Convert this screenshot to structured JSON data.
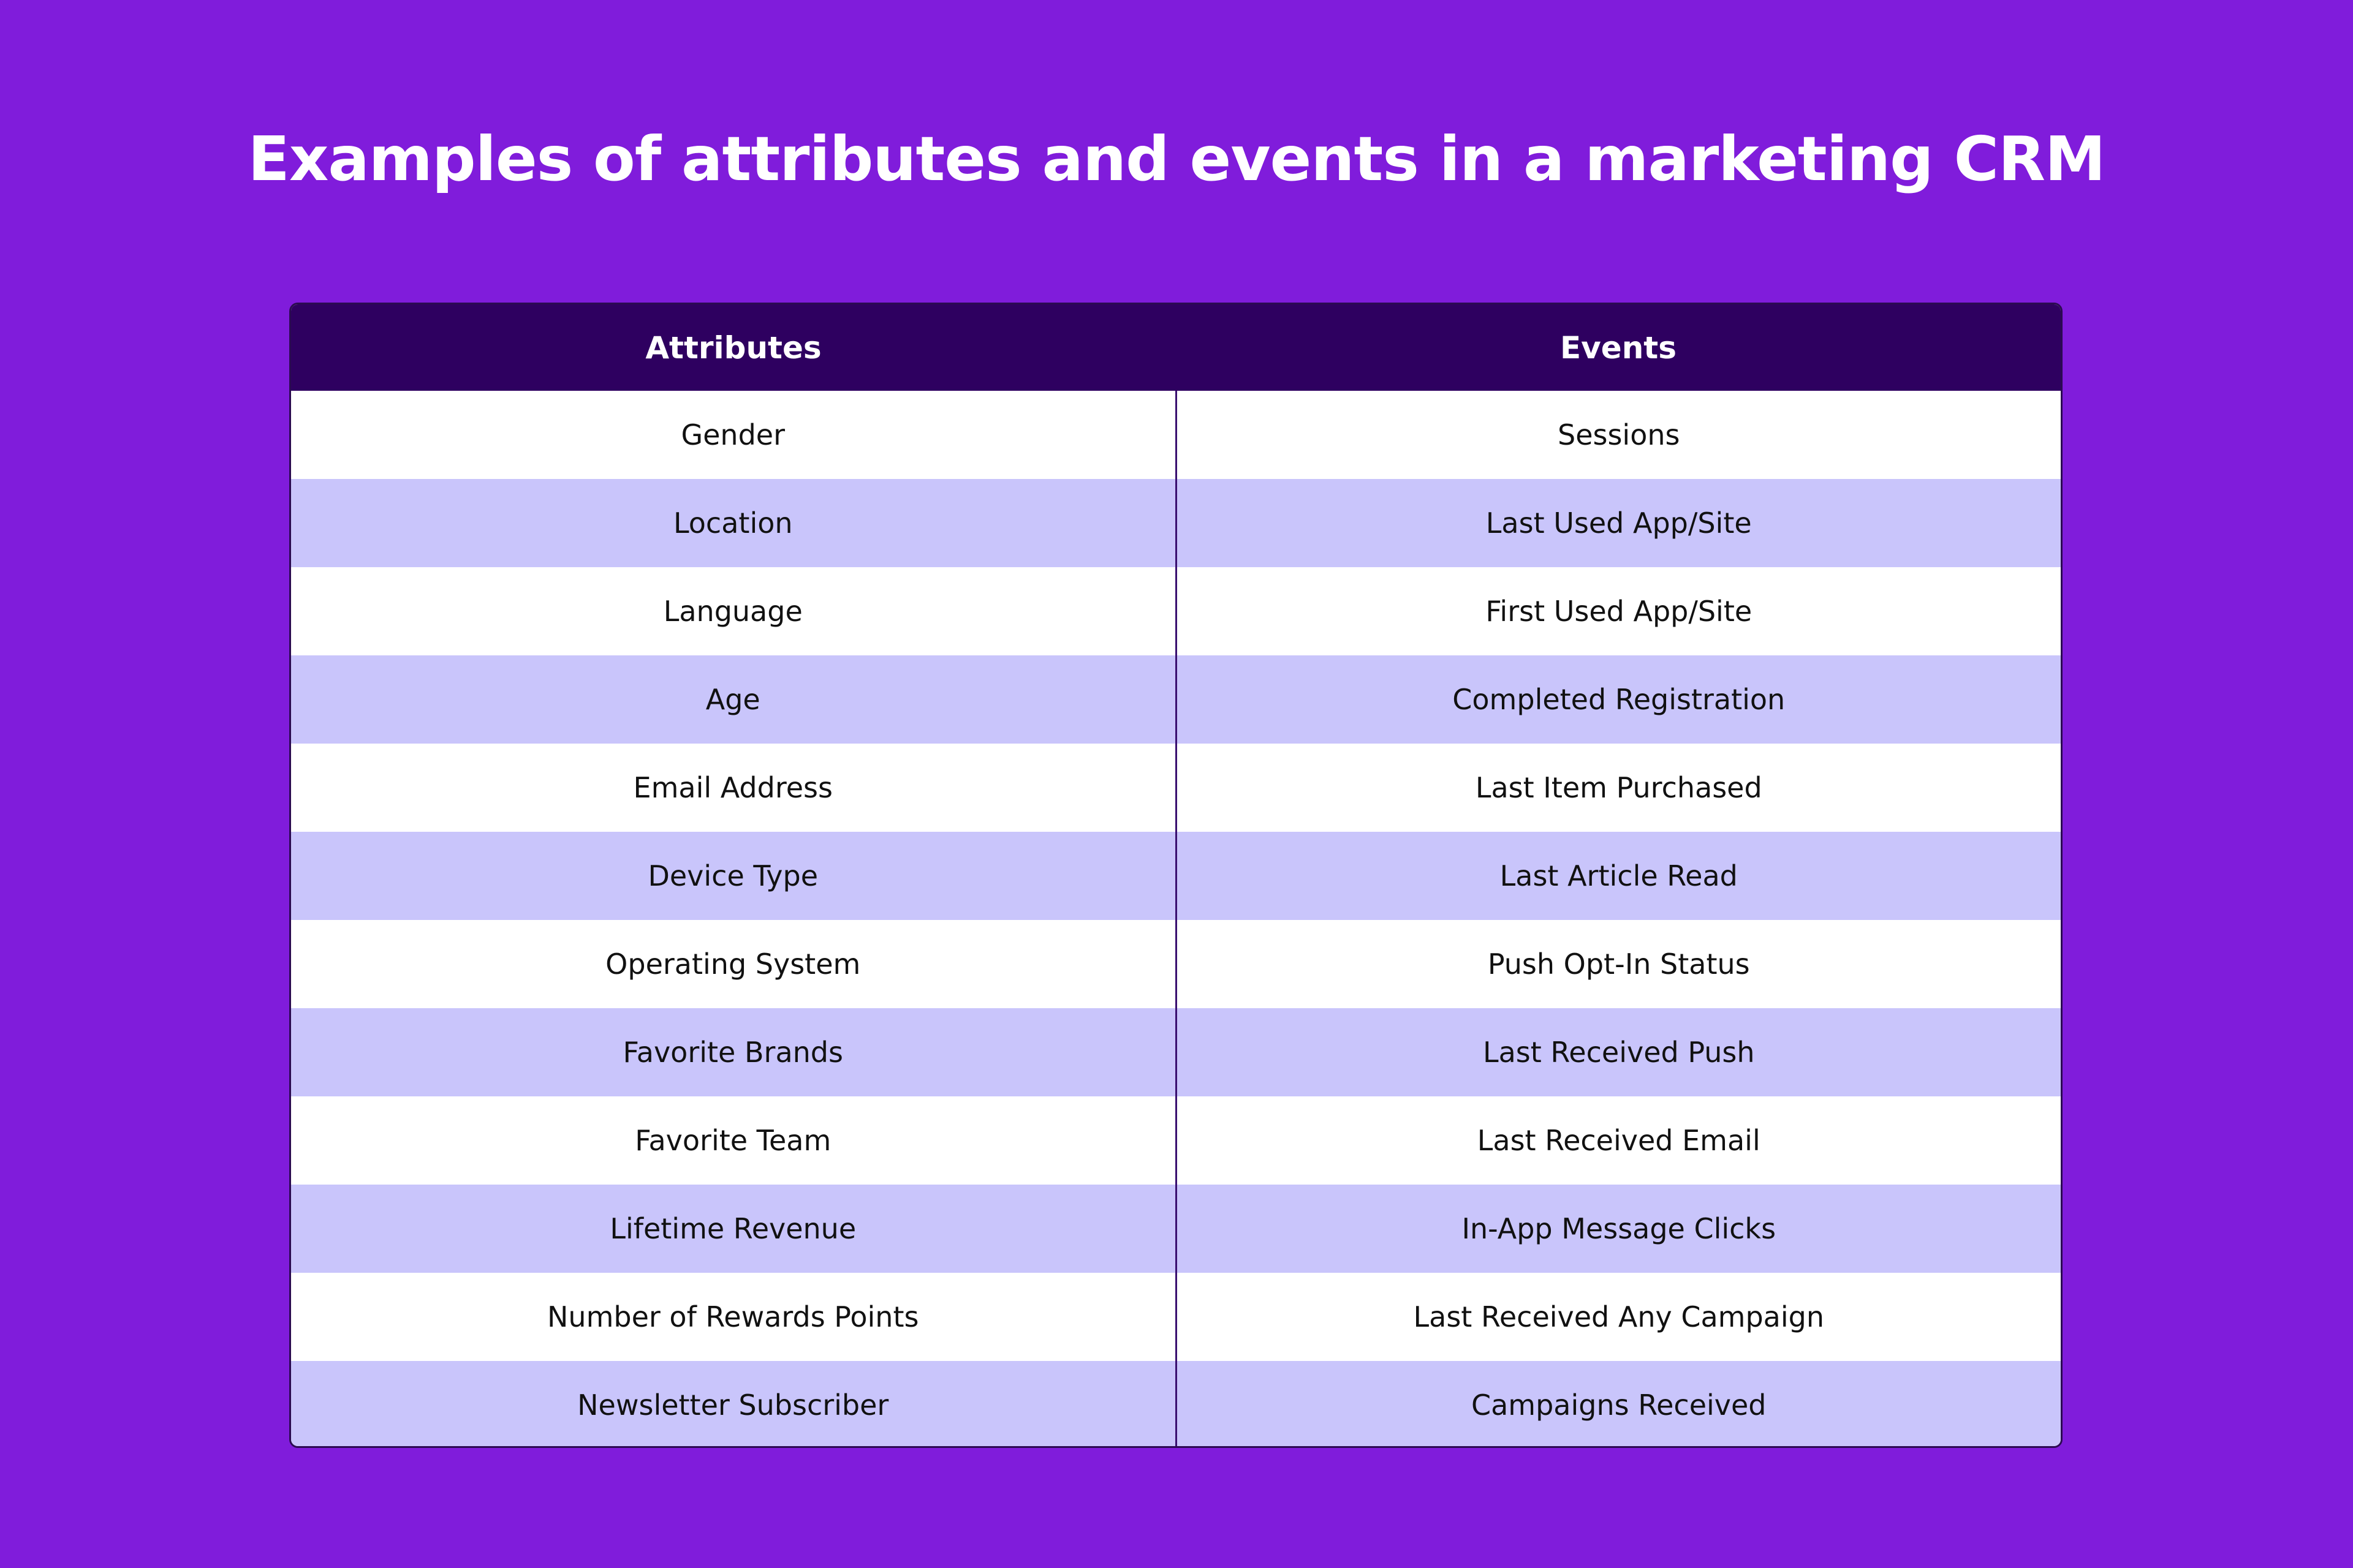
{
  "title": "Examples of attributes and events in a marketing CRM",
  "table": {
    "headers": [
      "Attributes",
      "Events"
    ],
    "rows": [
      [
        "Gender",
        "Sessions"
      ],
      [
        "Location",
        "Last Used App/Site"
      ],
      [
        "Language",
        "First Used App/Site"
      ],
      [
        "Age",
        "Completed Registration"
      ],
      [
        "Email Address",
        "Last Item Purchased"
      ],
      [
        "Device Type",
        "Last Article Read"
      ],
      [
        "Operating System",
        "Push Opt-In Status"
      ],
      [
        "Favorite Brands",
        "Last Received Push"
      ],
      [
        "Favorite Team",
        "Last Received Email"
      ],
      [
        "Lifetime Revenue",
        "In-App Message Clicks"
      ],
      [
        "Number of Rewards Points",
        "Last Received Any Campaign"
      ],
      [
        "Newsletter Subscriber",
        "Campaigns Received"
      ]
    ]
  },
  "colors": {
    "background": "#801cdb",
    "header": "#2e0060",
    "row_alt": "#c9c5fb",
    "row": "#ffffff"
  }
}
